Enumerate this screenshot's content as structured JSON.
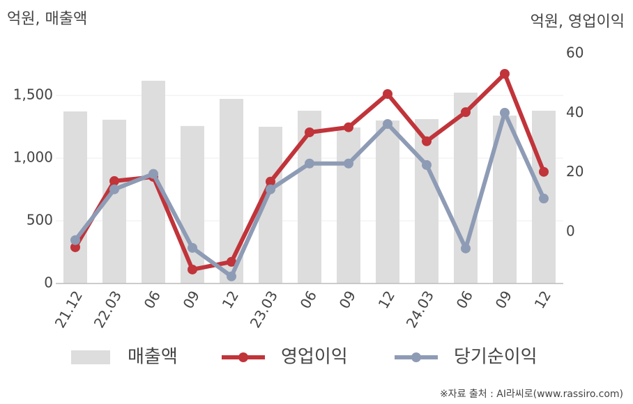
{
  "chart_data": {
    "type": "combo",
    "y_axis_label": "억원, 매출액",
    "y2_axis_label": "억원, 영업이익",
    "source": "※자료 출처 : AI라씨로(www.rassiro.com)",
    "categories": [
      "21.12",
      "22.03",
      "06",
      "09",
      "12",
      "23.03",
      "06",
      "09",
      "12",
      "24.03",
      "06",
      "09",
      "12"
    ],
    "series": [
      {
        "name": "매출액",
        "type": "bar",
        "axis": "y",
        "color": "#dddddd",
        "values": [
          1372,
          1306,
          1617,
          1256,
          1472,
          1250,
          1378,
          1244,
          1300,
          1311,
          1522,
          1339,
          1378
        ]
      },
      {
        "name": "영업이익",
        "type": "line",
        "axis": "y2",
        "color": "#c0343a",
        "values": [
          -5.2,
          17.1,
          18.5,
          -12.7,
          -10.1,
          16.9,
          33.5,
          35.2,
          46.4,
          30.5,
          40.3,
          53.2,
          20.2
        ]
      },
      {
        "name": "당기순이익",
        "type": "line",
        "axis": "y2",
        "color": "#8e9bb5",
        "values": [
          -2.8,
          14.3,
          19.5,
          -5.4,
          -15.0,
          14.3,
          23.0,
          23.0,
          36.3,
          22.5,
          -5.6,
          40.1,
          11.2
        ]
      }
    ],
    "ylim": [
      0,
      1833
    ],
    "yticks": [
      0,
      500,
      {
        "value": 1000,
        "label": "1,000"
      },
      {
        "value": 1500,
        "label": "1,500"
      }
    ],
    "y2lim": [
      -17.4,
      60
    ],
    "y2ticks": [
      0,
      20,
      40,
      60
    ],
    "grid": true
  }
}
